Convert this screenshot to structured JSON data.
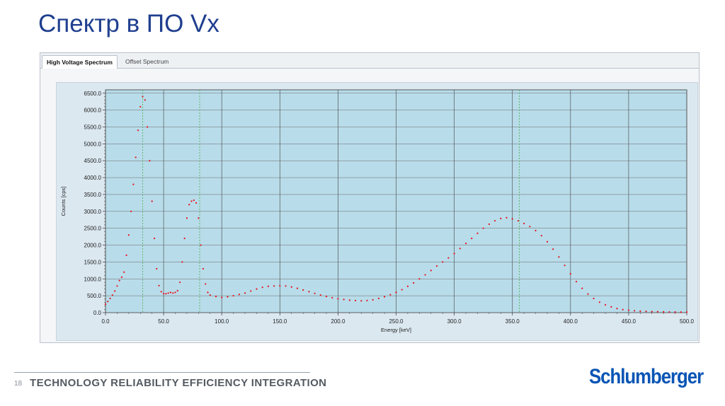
{
  "slide": {
    "title": "Спектр в ПО Vx",
    "page_number": "18",
    "tagline": "TECHNOLOGY RELIABILITY EFFICIENCY INTEGRATION",
    "logo_text": "Schlumberger"
  },
  "tabs": [
    {
      "label": "High Voltage Spectrum",
      "active": true
    },
    {
      "label": "Offset Spectrum",
      "active": false
    }
  ],
  "colors": {
    "accent": "#1f3f8f",
    "logo": "#0a55b5",
    "plot_background": "#dbe8f0",
    "data_points": "#e8101a",
    "marker_lines": "#4caf50",
    "grid": "#555555"
  },
  "chart_data": {
    "type": "scatter",
    "title": "",
    "xlabel": "Energy [keV]",
    "ylabel": "Counts [cps]",
    "xlim": [
      0,
      500
    ],
    "ylim": [
      0,
      6600
    ],
    "x_ticks": [
      0,
      50,
      100,
      150,
      200,
      250,
      300,
      350,
      400,
      450,
      500
    ],
    "x_tick_labels": [
      "0.0",
      "50.0",
      "100.0",
      "150.0",
      "200.0",
      "250.0",
      "300.0",
      "350.0",
      "400.0",
      "450.0",
      "500.0"
    ],
    "y_ticks": [
      0,
      500,
      1000,
      1500,
      2000,
      2500,
      3000,
      3500,
      4000,
      4500,
      5000,
      5500,
      6000,
      6500
    ],
    "y_tick_labels": [
      "0.0",
      "500.0",
      "1000.0",
      "1500.0",
      "2000.0",
      "2500.0",
      "3000.0",
      "3500.0",
      "4000.0",
      "4500.0",
      "5000.0",
      "5500.0",
      "6000.0",
      "6500.0"
    ],
    "grid": true,
    "marker_lines_x": [
      32,
      81,
      356
    ],
    "series": [
      {
        "points": [
          [
            0,
            250
          ],
          [
            2,
            330
          ],
          [
            4,
            420
          ],
          [
            6,
            520
          ],
          [
            8,
            640
          ],
          [
            10,
            790
          ],
          [
            12,
            950
          ],
          [
            14,
            1050
          ],
          [
            16,
            1200
          ],
          [
            18,
            1700
          ],
          [
            20,
            2300
          ],
          [
            22,
            3000
          ],
          [
            24,
            3800
          ],
          [
            26,
            4600
          ],
          [
            28,
            5400
          ],
          [
            30,
            6100
          ],
          [
            32,
            6400
          ],
          [
            34,
            6300
          ],
          [
            36,
            5500
          ],
          [
            38,
            4500
          ],
          [
            40,
            3300
          ],
          [
            42,
            2200
          ],
          [
            44,
            1300
          ],
          [
            46,
            800
          ],
          [
            48,
            620
          ],
          [
            50,
            560
          ],
          [
            52,
            560
          ],
          [
            54,
            580
          ],
          [
            56,
            600
          ],
          [
            58,
            580
          ],
          [
            60,
            600
          ],
          [
            62,
            650
          ],
          [
            64,
            900
          ],
          [
            66,
            1500
          ],
          [
            68,
            2200
          ],
          [
            70,
            2800
          ],
          [
            72,
            3200
          ],
          [
            74,
            3300
          ],
          [
            76,
            3330
          ],
          [
            78,
            3250
          ],
          [
            80,
            2800
          ],
          [
            82,
            2000
          ],
          [
            84,
            1300
          ],
          [
            86,
            850
          ],
          [
            88,
            600
          ],
          [
            90,
            520
          ],
          [
            95,
            480
          ],
          [
            100,
            450
          ],
          [
            105,
            470
          ],
          [
            110,
            500
          ],
          [
            115,
            540
          ],
          [
            120,
            580
          ],
          [
            125,
            640
          ],
          [
            130,
            700
          ],
          [
            135,
            750
          ],
          [
            140,
            780
          ],
          [
            145,
            790
          ],
          [
            150,
            795
          ],
          [
            155,
            790
          ],
          [
            160,
            760
          ],
          [
            165,
            720
          ],
          [
            170,
            670
          ],
          [
            175,
            620
          ],
          [
            180,
            570
          ],
          [
            185,
            520
          ],
          [
            190,
            480
          ],
          [
            195,
            440
          ],
          [
            200,
            410
          ],
          [
            205,
            390
          ],
          [
            210,
            370
          ],
          [
            215,
            360
          ],
          [
            220,
            350
          ],
          [
            225,
            360
          ],
          [
            230,
            380
          ],
          [
            235,
            420
          ],
          [
            240,
            470
          ],
          [
            245,
            530
          ],
          [
            250,
            600
          ],
          [
            255,
            680
          ],
          [
            260,
            780
          ],
          [
            265,
            880
          ],
          [
            270,
            1000
          ],
          [
            275,
            1120
          ],
          [
            280,
            1250
          ],
          [
            285,
            1380
          ],
          [
            290,
            1500
          ],
          [
            295,
            1620
          ],
          [
            300,
            1750
          ],
          [
            305,
            1900
          ],
          [
            310,
            2050
          ],
          [
            315,
            2200
          ],
          [
            320,
            2350
          ],
          [
            325,
            2500
          ],
          [
            330,
            2620
          ],
          [
            335,
            2720
          ],
          [
            340,
            2790
          ],
          [
            345,
            2810
          ],
          [
            350,
            2780
          ],
          [
            355,
            2720
          ],
          [
            360,
            2640
          ],
          [
            365,
            2550
          ],
          [
            370,
            2430
          ],
          [
            375,
            2280
          ],
          [
            380,
            2100
          ],
          [
            385,
            1880
          ],
          [
            390,
            1650
          ],
          [
            395,
            1400
          ],
          [
            400,
            1150
          ],
          [
            405,
            920
          ],
          [
            410,
            720
          ],
          [
            415,
            550
          ],
          [
            420,
            420
          ],
          [
            425,
            310
          ],
          [
            430,
            230
          ],
          [
            435,
            170
          ],
          [
            440,
            120
          ],
          [
            445,
            90
          ],
          [
            450,
            70
          ],
          [
            455,
            55
          ],
          [
            460,
            45
          ],
          [
            465,
            38
          ],
          [
            470,
            32
          ],
          [
            475,
            28
          ],
          [
            480,
            24
          ],
          [
            485,
            20
          ],
          [
            490,
            18
          ],
          [
            495,
            16
          ],
          [
            500,
            15
          ]
        ]
      }
    ]
  }
}
